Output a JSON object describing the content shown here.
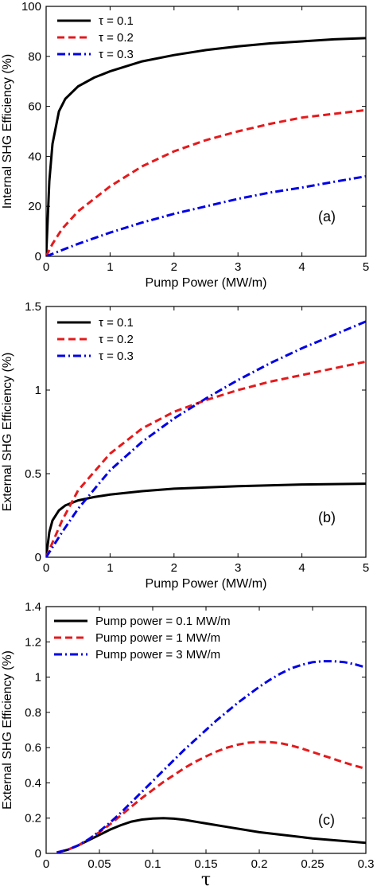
{
  "chart_data": [
    {
      "type": "line",
      "panel_label": "(a)",
      "xlabel": "Pump Power (MW/m)",
      "ylabel": "Internal SHG Efficiency (%)",
      "xlim": [
        0,
        5
      ],
      "ylim": [
        0,
        100
      ],
      "xticks": [
        0,
        1,
        2,
        3,
        4,
        5
      ],
      "yticks": [
        0,
        20,
        40,
        60,
        80,
        100
      ],
      "xtick_labels": [
        "0",
        "1",
        "2",
        "3",
        "4",
        "5"
      ],
      "ytick_labels": [
        "0",
        "20",
        "40",
        "60",
        "80",
        "100"
      ],
      "grid": false,
      "legend_position": "top-left",
      "series": [
        {
          "name": "τ = 0.1",
          "color": "#000000",
          "dash": "solid",
          "x": [
            0,
            0.05,
            0.1,
            0.2,
            0.3,
            0.5,
            0.75,
            1,
            1.5,
            2,
            2.5,
            3,
            3.5,
            4,
            4.5,
            5
          ],
          "y": [
            0,
            30,
            45,
            58,
            63,
            68,
            71.5,
            74,
            78,
            80.5,
            82.5,
            84,
            85.2,
            86,
            86.8,
            87.3
          ]
        },
        {
          "name": "τ = 0.2",
          "color": "#e41a1c",
          "dash": "dashed",
          "x": [
            0,
            0.1,
            0.25,
            0.5,
            1,
            1.5,
            2,
            2.5,
            3,
            3.5,
            4,
            4.5,
            5
          ],
          "y": [
            0,
            5,
            11,
            18,
            28,
            36,
            42,
            46.5,
            50,
            53,
            55.5,
            57,
            58.5
          ]
        },
        {
          "name": "τ = 0.3",
          "color": "#0000e6",
          "dash": "dashdot",
          "x": [
            0,
            0.25,
            0.5,
            1,
            1.5,
            2,
            2.5,
            3,
            3.5,
            4,
            4.5,
            5
          ],
          "y": [
            0,
            2.5,
            5,
            9.5,
            13.5,
            17,
            20,
            23,
            25.5,
            27.5,
            29.8,
            32
          ]
        }
      ]
    },
    {
      "type": "line",
      "panel_label": "(b)",
      "xlabel": "Pump Power (MW/m)",
      "ylabel": "External SHG Efficiency (%)",
      "xlim": [
        0,
        5
      ],
      "ylim": [
        0,
        1.5
      ],
      "xticks": [
        0,
        1,
        2,
        3,
        4,
        5
      ],
      "yticks": [
        0,
        0.5,
        1,
        1.5
      ],
      "xtick_labels": [
        "0",
        "1",
        "2",
        "3",
        "4",
        "5"
      ],
      "ytick_labels": [
        "0",
        "0.5",
        "1",
        "1.5"
      ],
      "grid": false,
      "legend_position": "top-left",
      "series": [
        {
          "name": "τ = 0.1",
          "color": "#000000",
          "dash": "solid",
          "x": [
            0,
            0.05,
            0.1,
            0.2,
            0.3,
            0.5,
            0.75,
            1,
            1.5,
            2,
            3,
            4,
            5
          ],
          "y": [
            0,
            0.15,
            0.22,
            0.28,
            0.31,
            0.34,
            0.36,
            0.375,
            0.395,
            0.41,
            0.425,
            0.435,
            0.44
          ]
        },
        {
          "name": "τ = 0.2",
          "color": "#e41a1c",
          "dash": "dashed",
          "x": [
            0,
            0.25,
            0.5,
            1,
            1.5,
            2,
            2.5,
            3,
            3.5,
            4,
            4.5,
            5
          ],
          "y": [
            0,
            0.22,
            0.4,
            0.62,
            0.77,
            0.87,
            0.94,
            1.0,
            1.05,
            1.09,
            1.13,
            1.17
          ]
        },
        {
          "name": "τ = 0.3",
          "color": "#0000e6",
          "dash": "dashdot",
          "x": [
            0,
            0.25,
            0.5,
            1,
            1.5,
            2,
            2.5,
            3,
            3.5,
            4,
            4.5,
            5
          ],
          "y": [
            0,
            0.15,
            0.29,
            0.52,
            0.69,
            0.83,
            0.95,
            1.06,
            1.16,
            1.25,
            1.33,
            1.41
          ]
        }
      ]
    },
    {
      "type": "line",
      "panel_label": "(c)",
      "xlabel": "τ",
      "ylabel": "External SHG Efficiency (%)",
      "xlim": [
        0,
        0.3
      ],
      "ylim": [
        0,
        1.4
      ],
      "xticks": [
        0,
        0.05,
        0.1,
        0.15,
        0.2,
        0.25,
        0.3
      ],
      "yticks": [
        0,
        0.2,
        0.4,
        0.6,
        0.8,
        1,
        1.2,
        1.4
      ],
      "xtick_labels": [
        "0",
        "0.05",
        "0.1",
        "0.15",
        "0.2",
        "0.25",
        "0.3"
      ],
      "ytick_labels": [
        "0",
        "0.2",
        "0.4",
        "0.6",
        "0.8",
        "1",
        "1.2",
        "1.4"
      ],
      "grid": false,
      "legend_position": "top-left",
      "series": [
        {
          "name": "Pump power = 0.1 MW/m",
          "color": "#000000",
          "dash": "solid",
          "x": [
            0.01,
            0.02,
            0.03,
            0.04,
            0.05,
            0.06,
            0.07,
            0.08,
            0.09,
            0.1,
            0.11,
            0.12,
            0.13,
            0.15,
            0.17,
            0.2,
            0.25,
            0.3
          ],
          "y": [
            0.005,
            0.02,
            0.045,
            0.075,
            0.105,
            0.135,
            0.16,
            0.18,
            0.192,
            0.198,
            0.2,
            0.197,
            0.19,
            0.17,
            0.15,
            0.12,
            0.085,
            0.06
          ]
        },
        {
          "name": "Pump power = 1 MW/m",
          "color": "#e41a1c",
          "dash": "dashed",
          "x": [
            0.01,
            0.02,
            0.03,
            0.04,
            0.05,
            0.06,
            0.07,
            0.08,
            0.09,
            0.1,
            0.11,
            0.12,
            0.13,
            0.14,
            0.15,
            0.16,
            0.17,
            0.18,
            0.19,
            0.2,
            0.21,
            0.22,
            0.23,
            0.24,
            0.25,
            0.26,
            0.27,
            0.28,
            0.29,
            0.3
          ],
          "y": [
            0.005,
            0.02,
            0.045,
            0.08,
            0.12,
            0.165,
            0.215,
            0.265,
            0.315,
            0.36,
            0.405,
            0.445,
            0.485,
            0.52,
            0.55,
            0.578,
            0.6,
            0.617,
            0.628,
            0.632,
            0.631,
            0.625,
            0.612,
            0.595,
            0.575,
            0.555,
            0.535,
            0.515,
            0.497,
            0.48
          ]
        },
        {
          "name": "Pump power = 3 MW/m",
          "color": "#0000e6",
          "dash": "dashdot",
          "x": [
            0.01,
            0.02,
            0.03,
            0.04,
            0.05,
            0.06,
            0.07,
            0.08,
            0.09,
            0.1,
            0.11,
            0.12,
            0.13,
            0.14,
            0.15,
            0.16,
            0.17,
            0.18,
            0.19,
            0.2,
            0.21,
            0.22,
            0.23,
            0.24,
            0.25,
            0.26,
            0.27,
            0.28,
            0.29,
            0.3
          ],
          "y": [
            0.005,
            0.02,
            0.045,
            0.08,
            0.125,
            0.175,
            0.23,
            0.29,
            0.35,
            0.41,
            0.47,
            0.53,
            0.59,
            0.645,
            0.7,
            0.755,
            0.805,
            0.855,
            0.9,
            0.945,
            0.985,
            1.02,
            1.05,
            1.07,
            1.085,
            1.09,
            1.09,
            1.085,
            1.072,
            1.055
          ]
        }
      ]
    }
  ]
}
